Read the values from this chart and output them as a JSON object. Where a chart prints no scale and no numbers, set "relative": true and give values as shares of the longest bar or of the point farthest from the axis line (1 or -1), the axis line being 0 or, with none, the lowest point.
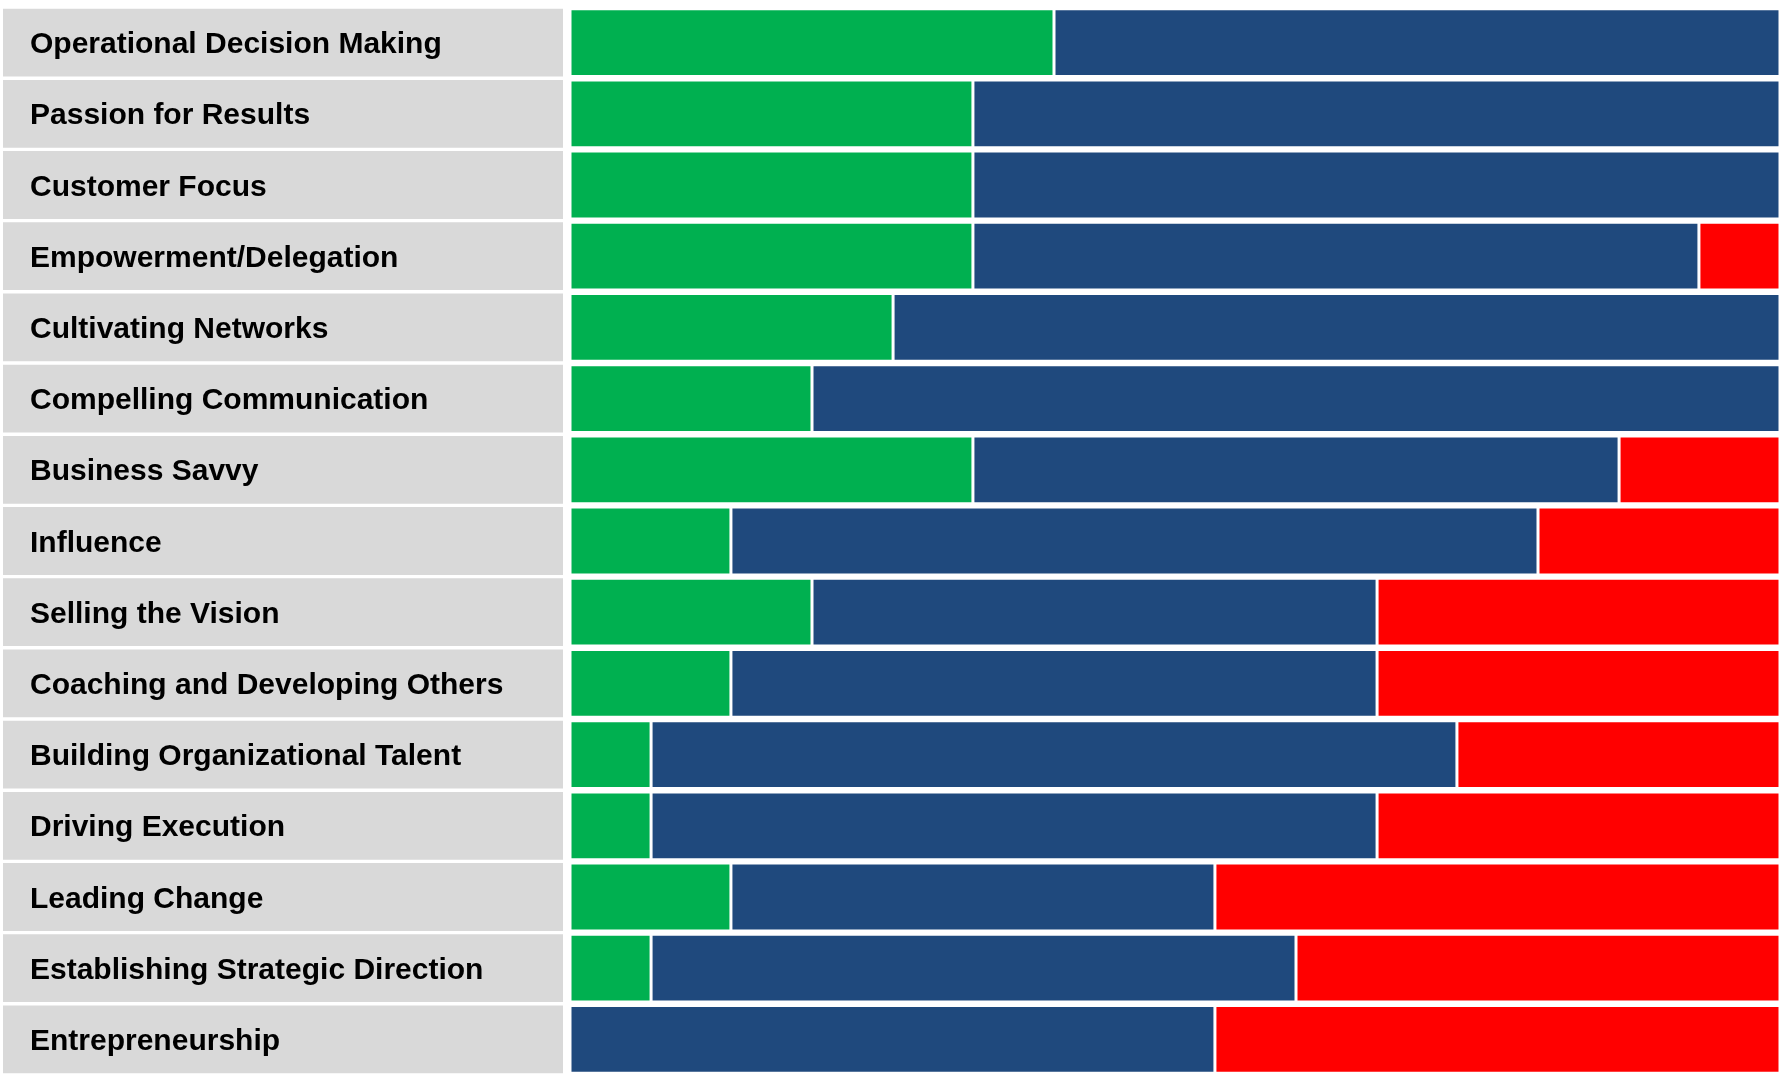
{
  "chart_data": {
    "type": "bar",
    "orientation": "horizontal",
    "stacked": true,
    "relative": true,
    "categories": [
      "Operational Decision Making",
      "Passion for Results",
      "Customer Focus",
      "Empowerment/Delegation",
      "Cultivating Networks",
      "Compelling Communication",
      "Business Savvy",
      "Influence",
      "Selling the Vision",
      "Coaching and Developing Others",
      "Building Organizational Talent",
      "Driving Execution",
      "Leading Change",
      "Establishing Strategic Direction",
      "Entrepreneurship"
    ],
    "series": [
      {
        "color": "#00b050",
        "values": [
          0.4,
          0.333,
          0.333,
          0.333,
          0.267,
          0.2,
          0.333,
          0.133,
          0.2,
          0.133,
          0.067,
          0.067,
          0.133,
          0.067,
          0
        ]
      },
      {
        "color": "#1f497d",
        "values": [
          0.6,
          0.667,
          0.667,
          0.6,
          0.733,
          0.8,
          0.534,
          0.667,
          0.467,
          0.534,
          0.666,
          0.6,
          0.4,
          0.533,
          0.533
        ]
      },
      {
        "color": "#ff0000",
        "values": [
          0,
          0,
          0,
          0.067,
          0,
          0,
          0.133,
          0.2,
          0.333,
          0.333,
          0.267,
          0.333,
          0.467,
          0.4,
          0.467
        ]
      }
    ]
  }
}
